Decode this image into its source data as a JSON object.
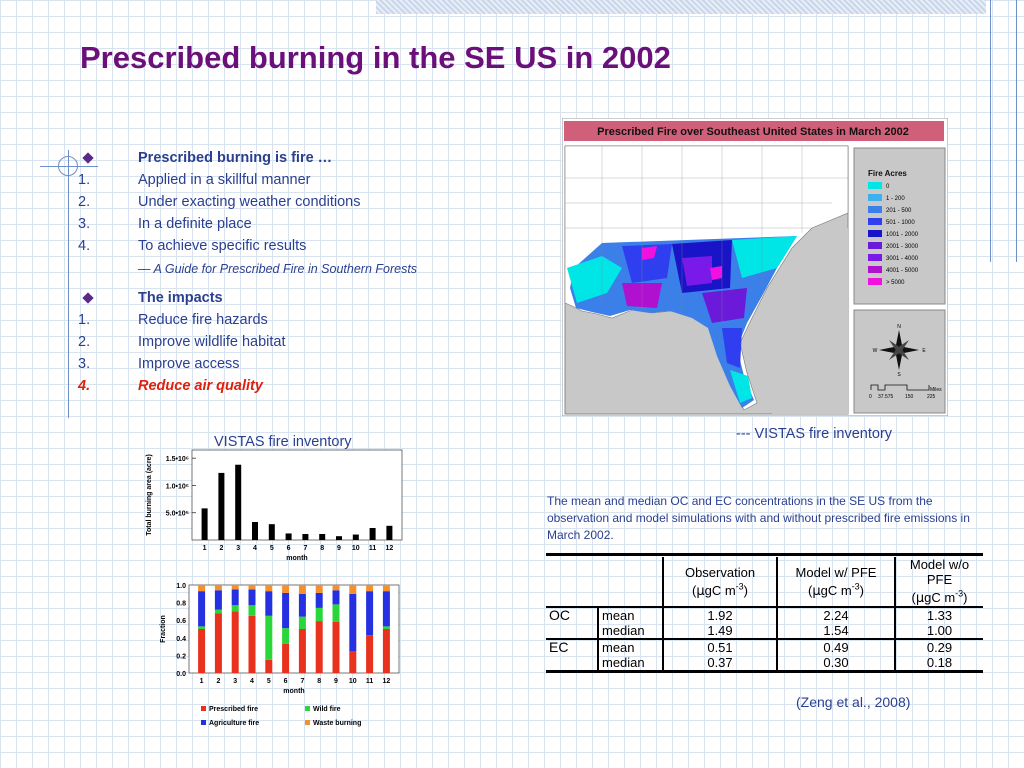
{
  "title": "Prescribed burning in the SE US in 2002",
  "list": {
    "h1": "Prescribed burning is fire …",
    "items1": [
      {
        "n": "1.",
        "t": "Applied in a skillful manner"
      },
      {
        "n": "2.",
        "t": "Under exacting weather conditions"
      },
      {
        "n": "3.",
        "t": "In a definite place"
      },
      {
        "n": "4.",
        "t": "To achieve specific results"
      }
    ],
    "quote": "― A Guide for Prescribed Fire in Southern Forests",
    "h2": "The impacts",
    "items2": [
      {
        "n": "1.",
        "t": "Reduce fire hazards"
      },
      {
        "n": "2.",
        "t": "Improve wildlife habitat"
      },
      {
        "n": "3.",
        "t": "Improve access"
      }
    ],
    "last": {
      "n": "4.",
      "t": "Reduce air quality"
    }
  },
  "captions": {
    "left": "VISTAS fire inventory",
    "right": "--- VISTAS fire inventory"
  },
  "map": {
    "title": "Prescribed Fire over Southeast United States in March 2002",
    "legend_title": "Fire Acres",
    "legend": [
      {
        "label": "0",
        "color": "#00e5e5"
      },
      {
        "label": "1 - 200",
        "color": "#3fb0ee"
      },
      {
        "label": "201 - 500",
        "color": "#3b7fe8"
      },
      {
        "label": "501 - 1000",
        "color": "#2f3ff0"
      },
      {
        "label": "1001 - 2000",
        "color": "#1a14c8"
      },
      {
        "label": "2001 - 3000",
        "color": "#6a1ad8"
      },
      {
        "label": "3001 - 4000",
        "color": "#7a1ae8"
      },
      {
        "label": "4001 - 5000",
        "color": "#b010d0"
      },
      {
        "label": "> 5000",
        "color": "#f010e0"
      }
    ],
    "compass": {
      "n": "N",
      "s": "S",
      "e": "E",
      "w": "W"
    },
    "scale_ticks": [
      "0",
      "37.575",
      "150",
      "225"
    ],
    "scale_unit": "Miles"
  },
  "chart_data": [
    {
      "type": "bar",
      "title": "",
      "xlabel": "month",
      "ylabel": "Total burning area (acre)",
      "categories": [
        "1",
        "2",
        "3",
        "4",
        "5",
        "6",
        "7",
        "8",
        "9",
        "10",
        "11",
        "12"
      ],
      "values": [
        580000,
        1230000,
        1380000,
        330000,
        290000,
        120000,
        110000,
        110000,
        70000,
        100000,
        220000,
        260000
      ],
      "ylim": [
        0,
        1650000
      ],
      "yticks": [
        "5.0•10⁵",
        "1.0•10⁶",
        "1.5•10⁶"
      ],
      "ytick_values": [
        500000,
        1000000,
        1500000
      ]
    },
    {
      "type": "bar",
      "stacked": true,
      "xlabel": "month",
      "ylabel": "Fraction",
      "categories": [
        "1",
        "2",
        "3",
        "4",
        "5",
        "6",
        "7",
        "8",
        "9",
        "10",
        "11",
        "12"
      ],
      "ylim": [
        0,
        1
      ],
      "yticks": [
        "0.0",
        "0.2",
        "0.4",
        "0.6",
        "0.8",
        "1.0"
      ],
      "series": [
        {
          "name": "Prescribed fire",
          "color": "#e8321e",
          "values": [
            0.5,
            0.68,
            0.7,
            0.65,
            0.15,
            0.33,
            0.5,
            0.59,
            0.58,
            0.25,
            0.43,
            0.5
          ]
        },
        {
          "name": "Wild fire",
          "color": "#2bd63a",
          "values": [
            0.03,
            0.04,
            0.07,
            0.12,
            0.5,
            0.18,
            0.14,
            0.15,
            0.2,
            0.0,
            0.0,
            0.03
          ]
        },
        {
          "name": "Agriculture fire",
          "color": "#2530e0",
          "values": [
            0.4,
            0.22,
            0.18,
            0.18,
            0.28,
            0.4,
            0.26,
            0.17,
            0.16,
            0.65,
            0.5,
            0.4
          ]
        },
        {
          "name": "Waste burning",
          "color": "#f5902e",
          "values": [
            0.07,
            0.06,
            0.05,
            0.05,
            0.07,
            0.09,
            0.1,
            0.09,
            0.06,
            0.1,
            0.07,
            0.07
          ]
        }
      ]
    }
  ],
  "paragraph": "The mean and median OC and EC concentrations in the SE US from the observation and model simulations with and without prescribed fire emissions in March 2002.",
  "table": {
    "headers": [
      "Observation",
      "Model w/ PFE",
      "Model w/o PFE"
    ],
    "unit_pre": "(",
    "unit_mu": "μ",
    "unit_mid": "gC m",
    "unit_sup": "-3",
    "unit_post": ")",
    "rows": [
      {
        "group": "OC",
        "stat": "mean",
        "v": [
          "1.92",
          "2.24",
          "1.33"
        ]
      },
      {
        "group": "",
        "stat": "median",
        "v": [
          "1.49",
          "1.54",
          "1.00"
        ]
      },
      {
        "group": "EC",
        "stat": "mean",
        "v": [
          "0.51",
          "0.49",
          "0.29"
        ]
      },
      {
        "group": "",
        "stat": "median",
        "v": [
          "0.37",
          "0.30",
          "0.18"
        ]
      }
    ]
  },
  "citation": "(Zeng et al., 2008)"
}
